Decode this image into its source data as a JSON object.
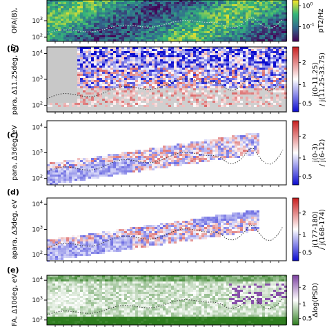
{
  "chart_data": [
    {
      "type": "heatmap",
      "panel_label": "",
      "ylabel": "OFA(B), ",
      "ylabel_full": "OFA(B), ",
      "yscale": "log",
      "yticks": [
        "10",
        "10"
      ],
      "ytick_exponents": [
        "3",
        "2"
      ],
      "yticks_minor_labels": [],
      "cbar_label": "pT2/Hz",
      "cbar_ticks": [
        "10",
        "10"
      ],
      "cbar_tick_exponents": [
        "0",
        "-1"
      ],
      "cmap_colors": [
        "#440154",
        "#31688e",
        "#35b779",
        "#fde725"
      ],
      "dotted_line": true
    },
    {
      "type": "heatmap",
      "panel_label": "(b)",
      "ylabel": "para, Δ11.25deg, eV",
      "yscale": "log",
      "yticks": [
        "10",
        "10",
        "10"
      ],
      "ytick_exponents": [
        "4",
        "3",
        "2"
      ],
      "cbar_label": "j(0-11.25)",
      "cbar_label2": "/ j(11.25-33.75)",
      "cbar_ticks": [
        "2",
        "1",
        "0.5"
      ],
      "cmap_colors": [
        "#0b0bcf",
        "#ffffff",
        "#c81e1e"
      ],
      "dotted_line": true
    },
    {
      "type": "heatmap",
      "panel_label": "(c)",
      "ylabel": "para, Δ3deg, eV",
      "yscale": "log",
      "yticks": [
        "10",
        "10",
        "10"
      ],
      "ytick_exponents": [
        "4",
        "3",
        "2"
      ],
      "cbar_label": "j(0-3)",
      "cbar_label2": "/ j(6-12)",
      "cbar_ticks": [
        "2",
        "1",
        "0.5"
      ],
      "cmap_colors": [
        "#0b0bcf",
        "#ffffff",
        "#c81e1e"
      ],
      "dotted_line": true
    },
    {
      "type": "heatmap",
      "panel_label": "(d)",
      "ylabel": "apara, Δ3deg, eV",
      "yscale": "log",
      "yticks": [
        "10",
        "10",
        "10"
      ],
      "ytick_exponents": [
        "4",
        "3",
        "2"
      ],
      "cbar_label": "j(177-180)",
      "cbar_label2": "/ j(168-174)",
      "cbar_ticks": [
        "2",
        "1",
        "0.5"
      ],
      "cmap_colors": [
        "#0b0bcf",
        "#ffffff",
        "#c81e1e"
      ],
      "dotted_line": true
    },
    {
      "type": "heatmap",
      "panel_label": "(e)",
      "ylabel": "FA, Δ10deg, eV",
      "yscale": "log",
      "yticks": [
        "10",
        "10",
        "10"
      ],
      "ytick_exponents": [
        "4",
        "3",
        "2"
      ],
      "cbar_label": "Δlog(PSD)",
      "cbar_ticks": [
        "2",
        "1",
        "0.5"
      ],
      "cmap_colors": [
        "#2e7d1f",
        "#ffffff",
        "#7b3fa0"
      ],
      "dotted_line": true
    }
  ]
}
